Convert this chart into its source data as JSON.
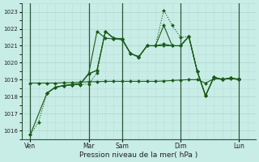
{
  "title": "",
  "xlabel": "Pression niveau de la mer( hPa )",
  "ylabel": "",
  "bg_color": "#c8ece6",
  "grid_major_color": "#b0d8d0",
  "grid_minor_color": "#b8e0d8",
  "line_color": "#1a5c1a",
  "vline_color": "#2a5a3a",
  "ylim": [
    1015.5,
    1023.5
  ],
  "xlim": [
    0,
    14
  ],
  "day_labels": [
    "Ven",
    "Mar",
    "Sam",
    "Dim",
    "Lun"
  ],
  "day_positions": [
    0.5,
    4.0,
    6.0,
    9.5,
    13.0
  ],
  "vline_positions": [
    0.5,
    4.0,
    6.0,
    9.5,
    13.0
  ],
  "yticks": [
    1016,
    1017,
    1018,
    1019,
    1020,
    1021,
    1022,
    1023
  ],
  "series": [
    {
      "x": [
        0.5,
        1.0,
        1.5,
        2.0,
        2.5,
        3.0,
        3.5,
        4.0,
        4.5,
        5.0,
        5.5,
        6.0,
        6.5,
        7.0,
        7.5,
        8.0,
        8.5,
        9.0,
        9.5,
        10.0,
        10.5,
        11.0,
        11.5,
        12.0,
        12.5,
        13.0
      ],
      "y": [
        1015.75,
        1016.5,
        1018.2,
        1018.55,
        1018.65,
        1018.7,
        1018.7,
        1018.75,
        1019.4,
        1021.85,
        1021.4,
        1021.35,
        1020.55,
        1020.3,
        1021.0,
        1021.0,
        1023.1,
        1022.2,
        1021.5,
        1021.55,
        1019.5,
        1018.05,
        1019.15,
        1019.0,
        1019.1,
        1019.0
      ],
      "style": "dotted",
      "marker": "D",
      "markersize": 2.0
    },
    {
      "x": [
        1.5,
        2.0,
        2.5,
        3.0,
        3.5,
        4.0,
        4.5,
        5.0,
        5.5,
        6.0,
        6.5,
        7.0,
        7.5,
        8.0,
        8.5,
        9.0,
        9.5,
        10.0,
        10.5,
        11.0,
        11.5,
        12.0,
        12.5,
        13.0
      ],
      "y": [
        1018.2,
        1018.55,
        1018.65,
        1018.7,
        1018.75,
        1019.35,
        1019.55,
        1021.85,
        1021.45,
        1021.4,
        1020.55,
        1020.35,
        1021.0,
        1021.0,
        1022.2,
        1021.0,
        1021.0,
        1021.55,
        1019.5,
        1018.05,
        1019.15,
        1019.0,
        1019.1,
        1019.0
      ],
      "style": "solid",
      "marker": "D",
      "markersize": 2.0
    },
    {
      "x": [
        1.5,
        2.0,
        2.5,
        3.0,
        3.5,
        4.0,
        4.5,
        5.0,
        5.5,
        6.0,
        6.5,
        7.0,
        7.5,
        8.0,
        8.5,
        9.0,
        9.5,
        10.0,
        10.5,
        11.0,
        11.5,
        12.0,
        12.5,
        13.0
      ],
      "y": [
        1018.2,
        1018.55,
        1018.65,
        1018.7,
        1018.75,
        1019.35,
        1021.85,
        1021.45,
        1021.4,
        1021.4,
        1020.55,
        1020.35,
        1021.0,
        1021.0,
        1021.0,
        1021.0,
        1021.0,
        1021.55,
        1019.5,
        1018.05,
        1019.15,
        1019.0,
        1019.1,
        1019.0
      ],
      "style": "solid",
      "marker": "D",
      "markersize": 2.0
    },
    {
      "x": [
        0.5,
        1.5,
        2.0,
        2.5,
        3.0,
        3.5,
        4.0,
        4.5,
        5.0,
        5.5,
        6.0,
        6.5,
        7.0,
        7.5,
        8.0,
        8.5,
        9.0,
        9.5,
        10.0,
        10.5,
        11.0,
        11.5,
        12.0,
        12.5,
        13.0
      ],
      "y": [
        1015.75,
        1018.2,
        1018.55,
        1018.65,
        1018.7,
        1018.75,
        1019.35,
        1019.55,
        1021.85,
        1021.45,
        1021.4,
        1020.55,
        1020.35,
        1021.0,
        1021.0,
        1021.1,
        1021.0,
        1021.0,
        1021.55,
        1019.5,
        1018.05,
        1019.15,
        1019.0,
        1019.1,
        1019.0
      ],
      "style": "solid",
      "marker": "D",
      "markersize": 2.0
    },
    {
      "x": [
        0.5,
        1.0,
        1.5,
        2.0,
        2.5,
        3.0,
        3.5,
        4.0,
        4.5,
        5.0,
        5.5,
        6.0,
        6.5,
        7.0,
        7.5,
        8.0,
        8.5,
        9.0,
        9.5,
        10.0,
        10.5,
        11.0,
        11.5,
        12.0,
        12.5,
        13.0
      ],
      "y": [
        1018.8,
        1018.8,
        1018.8,
        1018.8,
        1018.82,
        1018.82,
        1018.85,
        1018.88,
        1018.88,
        1018.9,
        1018.9,
        1018.9,
        1018.9,
        1018.9,
        1018.9,
        1018.9,
        1018.92,
        1018.95,
        1018.98,
        1019.0,
        1019.0,
        1018.8,
        1019.05,
        1019.05,
        1019.05,
        1019.05
      ],
      "style": "solid",
      "marker": "D",
      "markersize": 2.0
    }
  ]
}
